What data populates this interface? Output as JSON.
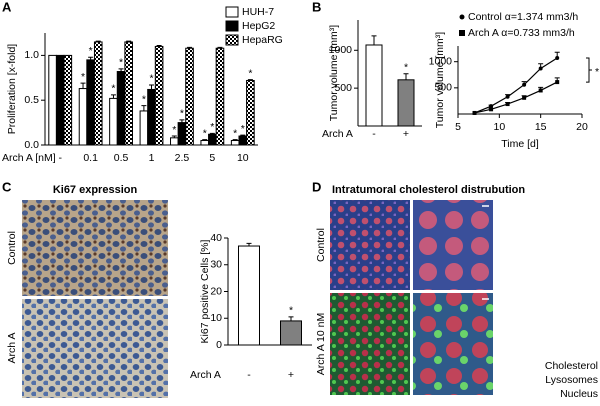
{
  "panels": [
    {
      "label": "A"
    },
    {
      "label": "B"
    },
    {
      "label": "C",
      "title": "Ki67 expression",
      "image_labels": [
        "Control",
        "Arch A"
      ]
    },
    {
      "label": "D",
      "title": "Intratumoral cholesterol distrubution",
      "image_labels": [
        "Control",
        "Arch A 10 nM"
      ],
      "legend": [
        {
          "text": "Cholesterol",
          "color": "#1a1aff"
        },
        {
          "text": "Lysosomes",
          "color": "#22cc22"
        },
        {
          "text": "Nucleus",
          "color": "#ee1111"
        }
      ]
    }
  ],
  "chart_data": [
    {
      "type": "bar",
      "ylabel": "Proliferation [x-fold]",
      "xlabel": "Arch A [nM]",
      "categories": [
        "-",
        "0.1",
        "0.5",
        "1",
        "2.5",
        "5",
        "10"
      ],
      "series": [
        {
          "name": "HUH-7",
          "color": "#ffffff",
          "values": [
            1.0,
            0.63,
            0.52,
            0.38,
            0.08,
            0.05,
            0.05
          ],
          "errors": [
            0,
            0.06,
            0.04,
            0.06,
            0.02,
            0.01,
            0.01
          ],
          "significance": [
            null,
            "*",
            "*",
            "*",
            "*",
            "*",
            "*"
          ]
        },
        {
          "name": "HepG2",
          "color": "#000000",
          "values": [
            1.0,
            0.95,
            0.82,
            0.62,
            0.25,
            0.12,
            0.1
          ],
          "errors": [
            0,
            0.03,
            0.03,
            0.05,
            0.03,
            0.01,
            0.01
          ],
          "significance": [
            null,
            "*",
            "*",
            "*",
            "*",
            "*",
            "*"
          ]
        },
        {
          "name": "HepaRG",
          "color": "#000000",
          "pattern": "checkered",
          "values": [
            1.0,
            1.15,
            1.15,
            1.1,
            1.08,
            1.08,
            0.72
          ],
          "errors": [
            0,
            0.01,
            0.01,
            0.01,
            0.01,
            0.01,
            0.01
          ],
          "significance": [
            null,
            null,
            null,
            null,
            null,
            null,
            "*"
          ]
        }
      ],
      "ylim": [
        0,
        1.25
      ],
      "yticks": [
        {
          "value": 0,
          "label": "0.0"
        },
        {
          "value": 0.5,
          "label": "0.5"
        },
        {
          "value": 1,
          "label": "1.0"
        }
      ]
    },
    {
      "type": "bar",
      "ylabel": "Tumor volume [mm³]",
      "xlabel": "Arch A",
      "categories": [
        "-",
        "+"
      ],
      "series": [
        {
          "colors": [
            "#ffffff",
            "#808080"
          ],
          "values": [
            1070,
            610
          ],
          "errors": [
            120,
            80
          ],
          "significance": [
            null,
            "*"
          ]
        }
      ],
      "ylim": [
        0,
        1400
      ],
      "yticks": [
        500,
        1000
      ]
    },
    {
      "type": "line",
      "ylabel": "Tumor volume [mm³]",
      "xlabel": "Time [d]",
      "x": [
        7,
        9,
        11,
        13,
        15,
        17
      ],
      "series": [
        {
          "name": "Control α=1.374 mm3/h",
          "color": "#000000",
          "marker": "circle",
          "values": [
            20,
            150,
            330,
            560,
            870,
            1070
          ],
          "errors": [
            0,
            20,
            40,
            60,
            90,
            110
          ]
        },
        {
          "name": "Arch A α=0.733 mm3/h",
          "color": "#000000",
          "marker": "square",
          "values": [
            20,
            90,
            190,
            310,
            450,
            610
          ],
          "errors": [
            0,
            15,
            30,
            40,
            60,
            80
          ]
        }
      ],
      "significance": "*",
      "xlim": [
        5,
        20
      ],
      "xticks": [
        5,
        10,
        15,
        20
      ],
      "ylim": [
        0,
        1300
      ],
      "yticks": [
        500,
        1000
      ]
    },
    {
      "type": "bar",
      "ylabel": "Ki67 positive Cells [%]",
      "xlabel": "Arch A",
      "categories": [
        "-",
        "+"
      ],
      "series": [
        {
          "colors": [
            "#ffffff",
            "#808080"
          ],
          "values": [
            37,
            9
          ],
          "errors": [
            1,
            1.5
          ],
          "significance": [
            null,
            "*"
          ]
        }
      ],
      "ylim": [
        0,
        40
      ],
      "yticks": [
        0,
        10,
        20,
        30,
        40
      ]
    }
  ]
}
